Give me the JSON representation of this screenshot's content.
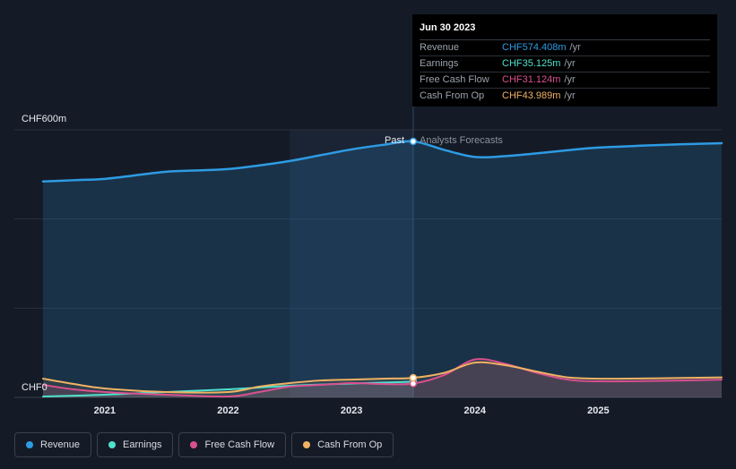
{
  "tooltip": {
    "date": "Jun 30 2023",
    "rows": [
      {
        "label": "Revenue",
        "value": "CHF574.408m",
        "unit": "/yr",
        "color": "#2e9be3"
      },
      {
        "label": "Earnings",
        "value": "CHF35.125m",
        "unit": "/yr",
        "color": "#4fe0cc"
      },
      {
        "label": "Free Cash Flow",
        "value": "CHF31.124m",
        "unit": "/yr",
        "color": "#d9508f"
      },
      {
        "label": "Cash From Op",
        "value": "CHF43.989m",
        "unit": "/yr",
        "color": "#f0b264"
      }
    ]
  },
  "legend": [
    {
      "label": "Revenue",
      "color": "#2e9be3"
    },
    {
      "label": "Earnings",
      "color": "#4fe0cc"
    },
    {
      "label": "Free Cash Flow",
      "color": "#d9508f"
    },
    {
      "label": "Cash From Op",
      "color": "#f0b264"
    }
  ],
  "chart_data": {
    "type": "line",
    "ylabel_top": "CHF600m",
    "ylabel_bottom": "CHF0",
    "ylim": [
      0,
      600
    ],
    "xlim": [
      2020.5,
      2026.0
    ],
    "x_ticks": [
      2021,
      2022,
      2023,
      2024,
      2025
    ],
    "x_tick_labels": [
      "2021",
      "2022",
      "2023",
      "2024",
      "2025"
    ],
    "divider_x": 2023.5,
    "past_label": "Past",
    "forecast_label": "Analysts Forecasts",
    "series": [
      {
        "name": "Revenue",
        "color": "#2e9be3",
        "x": [
          2020.5,
          2020.75,
          2021.0,
          2021.25,
          2021.5,
          2021.75,
          2022.0,
          2022.25,
          2022.5,
          2022.75,
          2023.0,
          2023.25,
          2023.5,
          2023.75,
          2024.0,
          2024.25,
          2024.5,
          2024.75,
          2025.0,
          2025.5,
          2026.0
        ],
        "y": [
          484,
          487,
          490,
          498,
          506,
          509,
          512,
          520,
          530,
          543,
          556,
          566,
          574,
          555,
          539,
          541,
          547,
          554,
          560,
          566,
          570
        ]
      },
      {
        "name": "Earnings",
        "color": "#4fe0cc",
        "x": [
          2020.5,
          2021.0,
          2021.5,
          2022.0,
          2022.5,
          2023.0,
          2023.5
        ],
        "y": [
          2,
          6,
          12,
          18,
          26,
          31,
          35
        ]
      },
      {
        "name": "Free Cash Flow",
        "color": "#d9508f",
        "x": [
          2020.5,
          2020.75,
          2021.0,
          2021.5,
          2022.0,
          2022.25,
          2022.5,
          2022.75,
          2023.0,
          2023.25,
          2023.5,
          2023.75,
          2024.0,
          2024.25,
          2024.5,
          2024.75,
          2025.0,
          2025.5,
          2026.0
        ],
        "y": [
          28,
          18,
          12,
          6,
          2,
          12,
          24,
          28,
          32,
          30,
          31,
          50,
          85,
          75,
          55,
          40,
          36,
          37,
          40
        ]
      },
      {
        "name": "Cash From Op",
        "color": "#f0b264",
        "x": [
          2020.5,
          2020.75,
          2021.0,
          2021.5,
          2022.0,
          2022.25,
          2022.5,
          2022.75,
          2023.0,
          2023.25,
          2023.5,
          2023.75,
          2024.0,
          2024.25,
          2024.5,
          2024.75,
          2025.0,
          2025.5,
          2026.0
        ],
        "y": [
          42,
          30,
          20,
          12,
          12,
          24,
          32,
          38,
          40,
          42,
          44,
          55,
          78,
          72,
          58,
          45,
          42,
          43,
          45
        ]
      }
    ]
  }
}
